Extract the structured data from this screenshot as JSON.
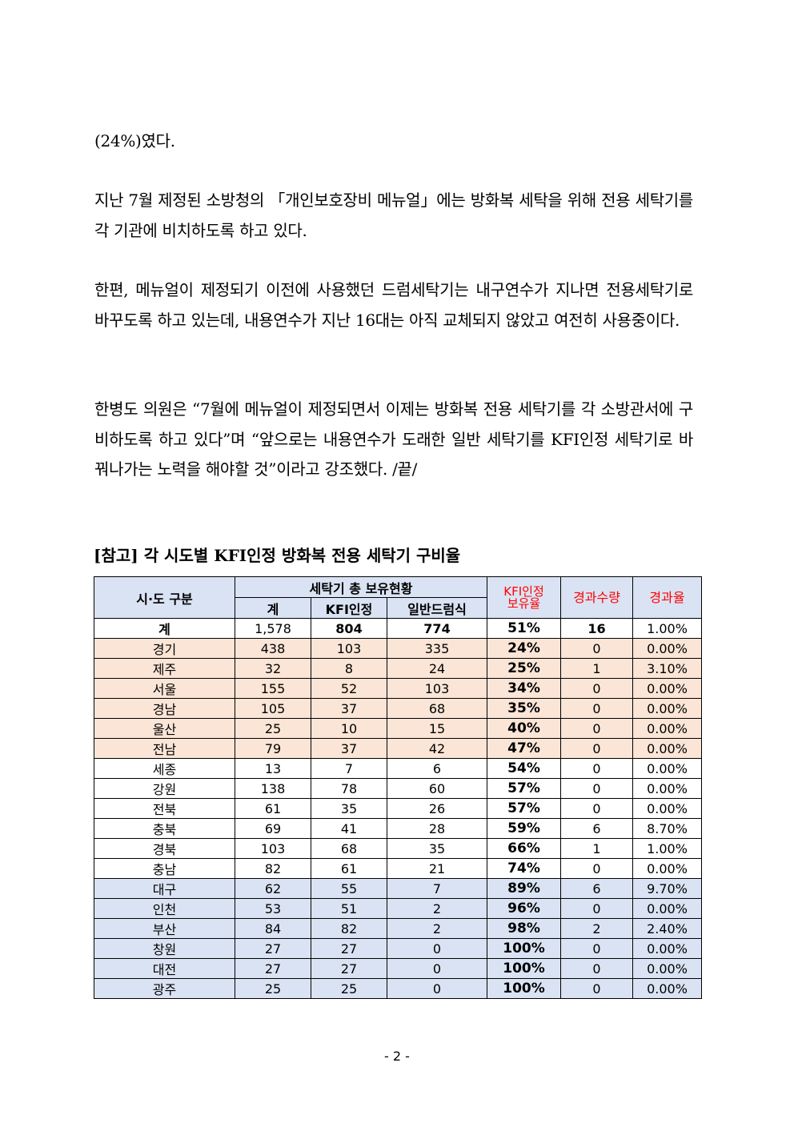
{
  "paragraphs": [
    "(24%)였다.",
    "지난 7월 제정된 소방청의 「개인보호장비 메뉴얼」에는 방화복 세탁을 위해 전용 세탁기를 각 기관에 비치하도록 하고 있다.",
    "한편, 메뉴얼이 제정되기 이전에 사용했던 드럼세탁기는 내구연수가 지나면 전용세탁기로 바꾸도록 하고 있는데, 내용연수가 지난 16대는 아직 교체되지 않았고 여전히 사용중이다.",
    "한병도 의원은 “7월에 메뉴얼이 제정되면서 이제는 방화복 전용 세탁기를 각 소방관서에 구비하도록 하고 있다”며 “앞으로는 내용연수가 도래한 일반 세탁기를 KFI인정 세탁기로 바꿔나가는 노력을 해야할 것”이라고 강조했다. /끝/"
  ],
  "ref_title": "[참고] 각 시도별 KFI인정 방화복 전용 세탁기 구비율",
  "table": {
    "headers": {
      "region": "시·도 구분",
      "holdings": "세탁기 총 보유현황",
      "total": "계",
      "kfi": "KFI인정",
      "drum": "일반드럼식",
      "kfi_rate_1": "KFI인정",
      "kfi_rate_2": "보유율",
      "expired": "경과수량",
      "expired_rate": "경과율"
    },
    "total_row": [
      "계",
      "1,578",
      "804",
      "774",
      "51%",
      "16",
      "1.00%"
    ],
    "rows": [
      {
        "c": [
          "경기",
          "438",
          "103",
          "335",
          "24%",
          "0",
          "0.00%"
        ],
        "hl": "orange"
      },
      {
        "c": [
          "제주",
          "32",
          "8",
          "24",
          "25%",
          "1",
          "3.10%"
        ],
        "hl": "orange"
      },
      {
        "c": [
          "서울",
          "155",
          "52",
          "103",
          "34%",
          "0",
          "0.00%"
        ],
        "hl": "orange"
      },
      {
        "c": [
          "경남",
          "105",
          "37",
          "68",
          "35%",
          "0",
          "0.00%"
        ],
        "hl": "orange"
      },
      {
        "c": [
          "울산",
          "25",
          "10",
          "15",
          "40%",
          "0",
          "0.00%"
        ],
        "hl": "orange"
      },
      {
        "c": [
          "전남",
          "79",
          "37",
          "42",
          "47%",
          "0",
          "0.00%"
        ],
        "hl": "orange"
      },
      {
        "c": [
          "세종",
          "13",
          "7",
          "6",
          "54%",
          "0",
          "0.00%"
        ],
        "hl": "none"
      },
      {
        "c": [
          "강원",
          "138",
          "78",
          "60",
          "57%",
          "0",
          "0.00%"
        ],
        "hl": "none"
      },
      {
        "c": [
          "전북",
          "61",
          "35",
          "26",
          "57%",
          "0",
          "0.00%"
        ],
        "hl": "none"
      },
      {
        "c": [
          "충북",
          "69",
          "41",
          "28",
          "59%",
          "6",
          "8.70%"
        ],
        "hl": "none"
      },
      {
        "c": [
          "경북",
          "103",
          "68",
          "35",
          "66%",
          "1",
          "1.00%"
        ],
        "hl": "none"
      },
      {
        "c": [
          "충남",
          "82",
          "61",
          "21",
          "74%",
          "0",
          "0.00%"
        ],
        "hl": "none"
      },
      {
        "c": [
          "대구",
          "62",
          "55",
          "7",
          "89%",
          "6",
          "9.70%"
        ],
        "hl": "blue"
      },
      {
        "c": [
          "인천",
          "53",
          "51",
          "2",
          "96%",
          "0",
          "0.00%"
        ],
        "hl": "blue"
      },
      {
        "c": [
          "부산",
          "84",
          "82",
          "2",
          "98%",
          "2",
          "2.40%"
        ],
        "hl": "blue"
      },
      {
        "c": [
          "창원",
          "27",
          "27",
          "0",
          "100%",
          "0",
          "0.00%"
        ],
        "hl": "blue"
      },
      {
        "c": [
          "대전",
          "27",
          "27",
          "0",
          "100%",
          "0",
          "0.00%"
        ],
        "hl": "blue"
      },
      {
        "c": [
          "광주",
          "25",
          "25",
          "0",
          "100%",
          "0",
          "0.00%"
        ],
        "hl": "blue"
      }
    ]
  },
  "colors": {
    "header_bg": "#dae3f3",
    "low_rate_bg": "#fbe5d6",
    "high_rate_bg": "#dae3f3",
    "header_red": "#ff0000"
  },
  "page_number": "- 2 -"
}
